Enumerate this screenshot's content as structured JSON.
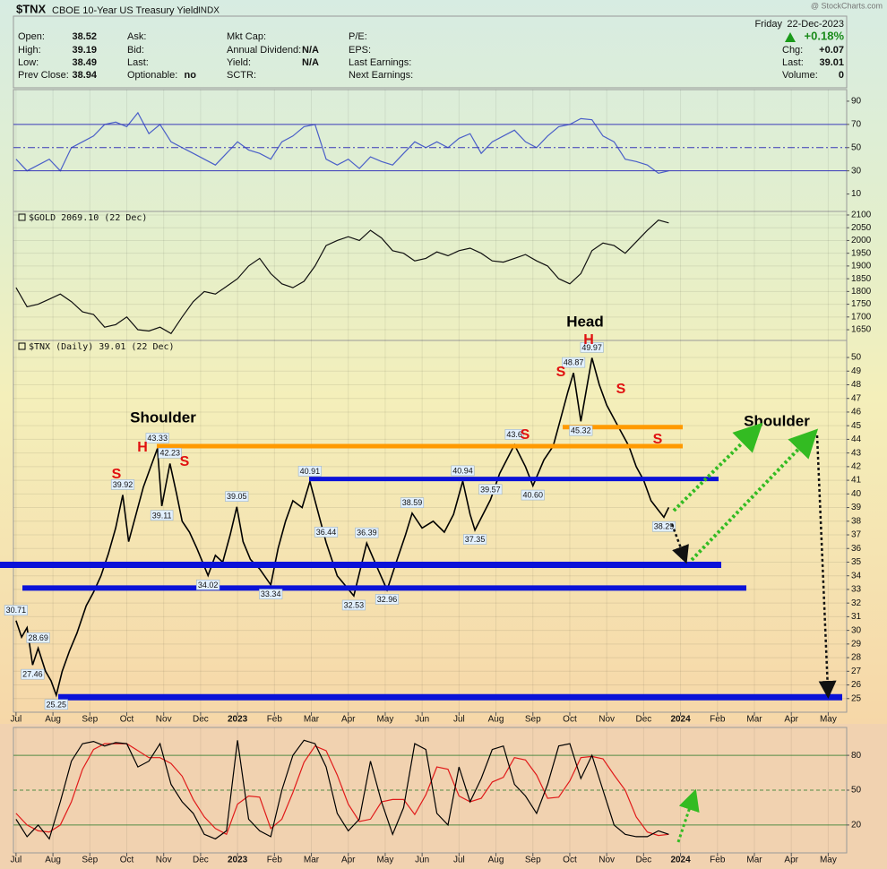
{
  "header": {
    "symbol": "$TNX",
    "name": "CBOE 10-Year US Treasury Yield",
    "exchange": "INDX",
    "watermark": "@ StockCharts.com",
    "day": "Friday",
    "date": "22-Dec-2023",
    "change_pct": "+0.18%",
    "columns": [
      [
        {
          "label": "Open:",
          "value": "38.52"
        },
        {
          "label": "High:",
          "value": "39.19"
        },
        {
          "label": "Low:",
          "value": "38.49"
        },
        {
          "label": "Prev Close:",
          "value": "38.94"
        }
      ],
      [
        {
          "label": "Ask:"
        },
        {
          "label": "Bid:"
        },
        {
          "label": "Last:"
        },
        {
          "label": "Optionable:",
          "value": "no"
        }
      ],
      [
        {
          "label": "Mkt Cap:"
        },
        {
          "label": "Annual Dividend:",
          "value": "N/A"
        },
        {
          "label": "Yield:",
          "value": "N/A"
        },
        {
          "label": "SCTR:"
        }
      ],
      [
        {
          "label": "P/E:"
        },
        {
          "label": "EPS:"
        },
        {
          "label": "Last Earnings:"
        },
        {
          "label": "Next Earnings:"
        }
      ]
    ],
    "stats": [
      {
        "label": "Chg:",
        "value": "+0.07"
      },
      {
        "label": "Last:",
        "value": "39.01"
      },
      {
        "label": "Volume:",
        "value": "0"
      }
    ]
  },
  "chart_data": [
    {
      "type": "line",
      "xlim": [
        -0.07,
        22.5
      ],
      "ylim": [
        -5,
        100
      ],
      "yticks": [
        10,
        30,
        50,
        70,
        90
      ],
      "levels": [
        {
          "value": 30,
          "color": "#3838b8"
        },
        {
          "value": 50,
          "color": "#3838b8",
          "dash": true
        },
        {
          "value": 70,
          "color": "#3838b8"
        }
      ],
      "x": [
        0,
        0.3,
        0.6,
        0.9,
        1.2,
        1.5,
        1.8,
        2.1,
        2.4,
        2.7,
        3.0,
        3.3,
        3.6,
        3.9,
        4.2,
        4.5,
        4.8,
        5.1,
        5.4,
        5.7,
        6.0,
        6.3,
        6.6,
        6.9,
        7.2,
        7.5,
        7.8,
        8.1,
        8.4,
        8.7,
        9.0,
        9.3,
        9.6,
        9.9,
        10.2,
        10.5,
        10.8,
        11.1,
        11.4,
        11.7,
        12.0,
        12.3,
        12.6,
        12.9,
        13.2,
        13.5,
        13.8,
        14.1,
        14.4,
        14.7,
        15.0,
        15.3,
        15.6,
        15.9,
        16.2,
        16.5,
        16.8,
        17.1,
        17.4,
        17.68
      ],
      "series": [
        {
          "color": "#4a5fc8",
          "values": [
            40,
            30,
            35,
            40,
            30,
            50,
            55,
            60,
            70,
            72,
            68,
            80,
            62,
            70,
            55,
            50,
            45,
            40,
            35,
            45,
            55,
            48,
            45,
            40,
            55,
            60,
            68,
            70,
            40,
            35,
            40,
            32,
            42,
            38,
            35,
            45,
            55,
            50,
            55,
            50,
            58,
            62,
            45,
            55,
            60,
            65,
            55,
            50,
            60,
            68,
            70,
            75,
            74,
            60,
            55,
            40,
            38,
            35,
            28,
            30
          ]
        }
      ]
    },
    {
      "type": "line",
      "xlim": [
        -0.07,
        22.5
      ],
      "ylim": [
        1608,
        2114
      ],
      "yticks": [
        1650,
        1700,
        1750,
        1800,
        1850,
        1900,
        1950,
        2000,
        2050,
        2100
      ],
      "grid": true,
      "x": [
        0,
        0.3,
        0.6,
        0.9,
        1.2,
        1.5,
        1.8,
        2.1,
        2.4,
        2.7,
        3.0,
        3.3,
        3.6,
        3.9,
        4.2,
        4.5,
        4.8,
        5.1,
        5.4,
        5.7,
        6.0,
        6.3,
        6.6,
        6.9,
        7.2,
        7.5,
        7.8,
        8.1,
        8.4,
        8.7,
        9.0,
        9.3,
        9.6,
        9.9,
        10.2,
        10.5,
        10.8,
        11.1,
        11.4,
        11.7,
        12.0,
        12.3,
        12.6,
        12.9,
        13.2,
        13.5,
        13.8,
        14.1,
        14.4,
        14.7,
        15.0,
        15.3,
        15.6,
        15.9,
        16.2,
        16.5,
        16.8,
        17.1,
        17.4,
        17.68
      ],
      "series": [
        {
          "name": "$GOLD 2069.10 (22 Dec)",
          "color": "#111111",
          "values": [
            1815,
            1740,
            1750,
            1770,
            1790,
            1760,
            1720,
            1710,
            1660,
            1670,
            1700,
            1650,
            1645,
            1660,
            1635,
            1700,
            1760,
            1800,
            1790,
            1820,
            1850,
            1900,
            1930,
            1870,
            1830,
            1815,
            1840,
            1900,
            1980,
            2000,
            2015,
            2000,
            2040,
            2010,
            1960,
            1950,
            1920,
            1930,
            1955,
            1940,
            1960,
            1970,
            1950,
            1920,
            1915,
            1930,
            1945,
            1920,
            1900,
            1850,
            1830,
            1870,
            1960,
            1990,
            1980,
            1950,
            1995,
            2040,
            2080,
            2069.1
          ]
        }
      ]
    },
    {
      "type": "line",
      "xlim": [
        -0.07,
        22.5
      ],
      "ylim": [
        24,
        51.25
      ],
      "yticks": [
        25,
        26,
        27,
        28,
        29,
        30,
        31,
        32,
        33,
        34,
        35,
        36,
        37,
        38,
        39,
        40,
        41,
        42,
        43,
        44,
        45,
        46,
        47,
        48,
        49,
        50
      ],
      "grid": true,
      "xticks": [
        {
          "value": 0,
          "label": "Jul"
        },
        {
          "value": 1,
          "label": "Aug"
        },
        {
          "value": 2,
          "label": "Sep"
        },
        {
          "value": 3,
          "label": "Oct"
        },
        {
          "value": 4,
          "label": "Nov"
        },
        {
          "value": 5,
          "label": "Dec"
        },
        {
          "value": 6,
          "label": "2023"
        },
        {
          "value": 7,
          "label": "Feb"
        },
        {
          "value": 8,
          "label": "Mar"
        },
        {
          "value": 9,
          "label": "Apr"
        },
        {
          "value": 10,
          "label": "May"
        },
        {
          "value": 11,
          "label": "Jun"
        },
        {
          "value": 12,
          "label": "Jul"
        },
        {
          "value": 13,
          "label": "Aug"
        },
        {
          "value": 14,
          "label": "Sep"
        },
        {
          "value": 15,
          "label": "Oct"
        },
        {
          "value": 16,
          "label": "Nov"
        },
        {
          "value": 17,
          "label": "Dec"
        },
        {
          "value": 18,
          "label": "2024"
        },
        {
          "value": 19,
          "label": "Feb"
        },
        {
          "value": 20,
          "label": "Mar"
        },
        {
          "value": 21,
          "label": "Apr"
        },
        {
          "value": 22,
          "label": "May"
        }
      ],
      "levels": [
        {
          "value": 43.5,
          "color": "#ff9a00"
        },
        {
          "value": 44.9,
          "color": "#ff9a00"
        },
        {
          "value": 41.1,
          "color": "#0b12d8"
        },
        {
          "value": 34.8,
          "color": "#0b12d8"
        },
        {
          "value": 33.1,
          "color": "#0b12d8"
        },
        {
          "value": 25.1,
          "color": "#0b12d8"
        }
      ],
      "annotations": [
        {
          "text": "Shoulder",
          "color": "#000000"
        },
        {
          "text": "H",
          "color": "#e01010"
        },
        {
          "text": "S",
          "color": "#e01010"
        },
        {
          "text": "S",
          "color": "#e01010"
        },
        {
          "text": "Head",
          "color": "#000000"
        },
        {
          "text": "H",
          "color": "#e01010"
        },
        {
          "text": "S",
          "color": "#e01010"
        },
        {
          "text": "S",
          "color": "#e01010"
        },
        {
          "text": "S",
          "color": "#e01010"
        },
        {
          "text": "S",
          "color": "#e01010"
        },
        {
          "text": "Shoulder",
          "color": "#000000"
        }
      ],
      "x": [
        0,
        0.15,
        0.3,
        0.45,
        0.6,
        0.8,
        0.95,
        1.09,
        1.25,
        1.45,
        1.65,
        1.9,
        2.1,
        2.3,
        2.5,
        2.7,
        2.89,
        3.05,
        3.25,
        3.45,
        3.65,
        3.83,
        3.95,
        4.17,
        4.35,
        4.5,
        4.7,
        4.9,
        5.2,
        5.4,
        5.6,
        5.8,
        5.98,
        6.15,
        6.35,
        6.6,
        6.9,
        7.1,
        7.3,
        7.5,
        7.75,
        7.96,
        8.1,
        8.4,
        8.7,
        9.15,
        9.5,
        9.8,
        10.05,
        10.3,
        10.55,
        10.73,
        11.0,
        11.3,
        11.6,
        11.85,
        12.1,
        12.3,
        12.43,
        12.85,
        13.1,
        13.5,
        13.8,
        14.0,
        14.3,
        14.55,
        14.75,
        14.95,
        15.1,
        15.3,
        15.6,
        15.8,
        16.0,
        16.2,
        16.4,
        16.6,
        16.8,
        17.0,
        17.2,
        17.4,
        17.55,
        17.68
      ],
      "series": [
        {
          "name": "$TNX (Daily) 39.01 (22 Dec)",
          "color": "#000000",
          "values": [
            30.71,
            29.5,
            30.2,
            27.46,
            28.69,
            27.0,
            26.3,
            25.25,
            27,
            28.5,
            29.8,
            31.8,
            32.8,
            34,
            35.6,
            37.5,
            39.92,
            36.5,
            38.5,
            40.5,
            42,
            43.33,
            39.11,
            42.23,
            40,
            38,
            37.2,
            36,
            34.02,
            35.5,
            35,
            37,
            39.05,
            36.5,
            35.2,
            34.5,
            33.34,
            36,
            38,
            39.5,
            39,
            40.91,
            39.5,
            36.44,
            34,
            32.53,
            36.39,
            34.5,
            32.96,
            35,
            37,
            38.59,
            37.5,
            38,
            37.2,
            38.5,
            40.94,
            38.5,
            37.35,
            39.57,
            41.5,
            43.6,
            42,
            40.6,
            42.5,
            43.5,
            45.5,
            47.5,
            48.87,
            45.32,
            49.97,
            48,
            46.5,
            45.5,
            44.5,
            43.5,
            42,
            41,
            39.5,
            38.8,
            38.29,
            39.01
          ],
          "value_labels": [
            "30.71",
            null,
            null,
            "27.46",
            "28.69",
            null,
            null,
            "25.25",
            null,
            null,
            null,
            null,
            null,
            null,
            null,
            null,
            "39.92",
            null,
            null,
            null,
            null,
            "43.33",
            "39.11",
            "42.23",
            null,
            null,
            null,
            null,
            "34.02",
            null,
            null,
            null,
            "39.05",
            null,
            null,
            null,
            "33.34",
            null,
            null,
            null,
            null,
            "40.91",
            null,
            "36.44",
            null,
            "32.53",
            "36.39",
            null,
            "32.96",
            null,
            null,
            "38.59",
            null,
            null,
            null,
            null,
            "40.94",
            null,
            "37.35",
            "39.57",
            null,
            "43.6",
            null,
            "40.60",
            null,
            null,
            null,
            null,
            "48.87",
            "45.32",
            "49.97",
            null,
            null,
            null,
            null,
            null,
            null,
            null,
            null,
            null,
            "38.29",
            null
          ]
        }
      ]
    },
    {
      "type": "line",
      "xlim": [
        -0.07,
        22.5
      ],
      "ylim": [
        -4,
        104
      ],
      "yticks": [
        20,
        50,
        80
      ],
      "grid": true,
      "xticks": [
        {
          "value": 0,
          "label": "Jul"
        },
        {
          "value": 1,
          "label": "Aug"
        },
        {
          "value": 2,
          "label": "Sep"
        },
        {
          "value": 3,
          "label": "Oct"
        },
        {
          "value": 4,
          "label": "Nov"
        },
        {
          "value": 5,
          "label": "Dec"
        },
        {
          "value": 6,
          "label": "2023"
        },
        {
          "value": 7,
          "label": "Feb"
        },
        {
          "value": 8,
          "label": "Mar"
        },
        {
          "value": 9,
          "label": "Apr"
        },
        {
          "value": 10,
          "label": "May"
        },
        {
          "value": 11,
          "label": "Jun"
        },
        {
          "value": 12,
          "label": "Jul"
        },
        {
          "value": 13,
          "label": "Aug"
        },
        {
          "value": 14,
          "label": "Sep"
        },
        {
          "value": 15,
          "label": "Oct"
        },
        {
          "value": 16,
          "label": "Nov"
        },
        {
          "value": 17,
          "label": "Dec"
        },
        {
          "value": 18,
          "label": "2024"
        },
        {
          "value": 19,
          "label": "Feb"
        },
        {
          "value": 20,
          "label": "Mar"
        },
        {
          "value": 21,
          "label": "Apr"
        },
        {
          "value": 22,
          "label": "May"
        }
      ],
      "x": [
        0,
        0.3,
        0.6,
        0.9,
        1.2,
        1.5,
        1.8,
        2.1,
        2.4,
        2.7,
        3.0,
        3.3,
        3.6,
        3.9,
        4.2,
        4.5,
        4.8,
        5.1,
        5.4,
        5.7,
        6.0,
        6.3,
        6.6,
        6.9,
        7.2,
        7.5,
        7.8,
        8.1,
        8.4,
        8.7,
        9.0,
        9.3,
        9.6,
        9.9,
        10.2,
        10.5,
        10.8,
        11.1,
        11.4,
        11.7,
        12.0,
        12.3,
        12.6,
        12.9,
        13.2,
        13.5,
        13.8,
        14.1,
        14.4,
        14.7,
        15.0,
        15.3,
        15.6,
        15.9,
        16.2,
        16.5,
        16.8,
        17.1,
        17.4,
        17.68
      ],
      "series": [
        {
          "color": "#e01a1a",
          "values": [
            30,
            20,
            15,
            14,
            20,
            40,
            68,
            85,
            90,
            90,
            90,
            84,
            78,
            78,
            73,
            62,
            42,
            27,
            17,
            12,
            38,
            45,
            44,
            17,
            25,
            48,
            74,
            88,
            84,
            63,
            38,
            23,
            25,
            40,
            42,
            42,
            29,
            46,
            70,
            68,
            45,
            40,
            43,
            57,
            61,
            78,
            76,
            63,
            43,
            44,
            58,
            78,
            79,
            77,
            63,
            50,
            27,
            14,
            11,
            12
          ]
        },
        {
          "color": "#000000",
          "values": [
            25,
            10,
            20,
            8,
            40,
            75,
            90,
            92,
            88,
            91,
            90,
            70,
            75,
            90,
            55,
            40,
            30,
            12,
            8,
            15,
            93,
            25,
            15,
            10,
            50,
            80,
            93,
            90,
            70,
            30,
            15,
            25,
            75,
            40,
            12,
            35,
            90,
            85,
            30,
            20,
            70,
            40,
            60,
            85,
            88,
            55,
            45,
            30,
            55,
            88,
            90,
            60,
            80,
            50,
            20,
            12,
            10,
            10,
            15,
            12
          ]
        }
      ]
    }
  ]
}
